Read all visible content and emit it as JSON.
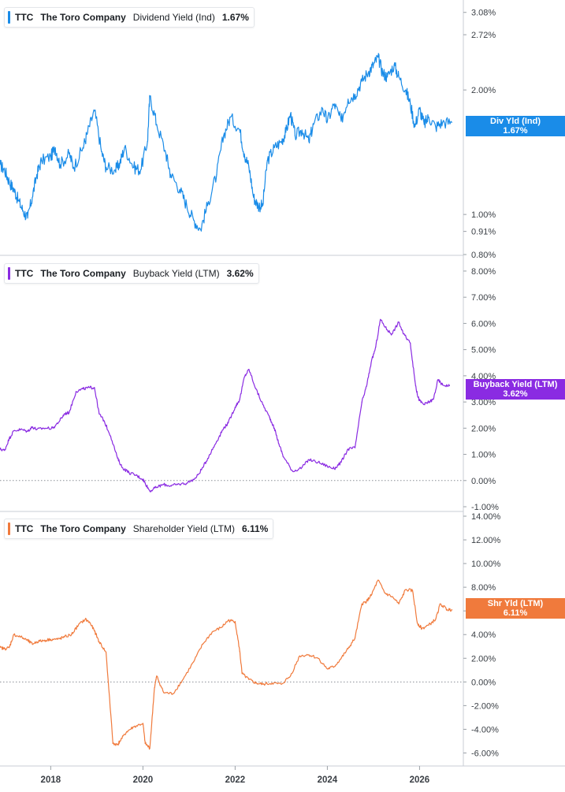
{
  "chart_data": [
    {
      "type": "line",
      "ticker": "TTC",
      "company": "The Toro Company",
      "metric": "Dividend Yield (Ind)",
      "last_value": "1.67%",
      "tag_label": "Div Yld (Ind)",
      "tag_value": "1.67%",
      "color": "#1a8ce8",
      "scale": "log",
      "ylim": [
        0.8,
        3.3
      ],
      "yticks": [
        "3.08%",
        "2.72%",
        "2.00%",
        "1.00%",
        "0.91%",
        "0.80%"
      ],
      "x": [
        2016.9,
        2017.0,
        2017.1,
        2017.2,
        2017.3,
        2017.4,
        2017.5,
        2017.6,
        2017.7,
        2017.8,
        2018.0,
        2018.1,
        2018.2,
        2018.4,
        2018.5,
        2018.7,
        2018.8,
        2018.95,
        2019.1,
        2019.2,
        2019.4,
        2019.5,
        2019.6,
        2019.8,
        2019.95,
        2020.1,
        2020.15,
        2020.3,
        2020.5,
        2020.6,
        2020.8,
        2020.95,
        2021.1,
        2021.25,
        2021.4,
        2021.6,
        2021.75,
        2021.9,
        2022.1,
        2022.2,
        2022.3,
        2022.4,
        2022.5,
        2022.6,
        2022.7,
        2022.85,
        2023.0,
        2023.1,
        2023.2,
        2023.3,
        2023.45,
        2023.6,
        2023.7,
        2023.9,
        2024.0,
        2024.15,
        2024.3,
        2024.45,
        2024.6,
        2024.75,
        2024.9,
        2025.0,
        2025.1,
        2025.2,
        2025.3,
        2025.45,
        2025.55,
        2025.7,
        2025.8,
        2025.9,
        2026.0,
        2026.1,
        2026.2,
        2026.35,
        2026.5,
        2026.7
      ],
      "y": [
        1.32,
        1.28,
        1.2,
        1.15,
        1.08,
        1.02,
        0.98,
        1.1,
        1.25,
        1.35,
        1.38,
        1.45,
        1.32,
        1.4,
        1.3,
        1.45,
        1.58,
        1.78,
        1.42,
        1.3,
        1.28,
        1.33,
        1.45,
        1.3,
        1.28,
        1.5,
        1.93,
        1.65,
        1.4,
        1.25,
        1.15,
        1.05,
        0.97,
        0.92,
        1.05,
        1.25,
        1.55,
        1.72,
        1.6,
        1.4,
        1.3,
        1.1,
        1.05,
        1.05,
        1.35,
        1.45,
        1.5,
        1.58,
        1.75,
        1.55,
        1.6,
        1.5,
        1.65,
        1.8,
        1.68,
        1.85,
        1.68,
        1.9,
        1.95,
        2.1,
        2.22,
        2.3,
        2.4,
        2.2,
        2.15,
        2.3,
        2.15,
        2.0,
        1.85,
        1.63,
        1.8,
        1.65,
        1.72,
        1.63,
        1.67,
        1.67
      ]
    },
    {
      "type": "line",
      "ticker": "TTC",
      "company": "The Toro Company",
      "metric": "Buyback Yield (LTM)",
      "last_value": "3.62%",
      "tag_label": "Buyback Yield (LTM)",
      "tag_value": "3.62%",
      "color": "#8a2be2",
      "ylim": [
        -1.15,
        8.6
      ],
      "yticks": [
        "8.00%",
        "7.00%",
        "6.00%",
        "5.00%",
        "4.00%",
        "3.00%",
        "2.00%",
        "1.00%",
        "0.00%",
        "-1.00%"
      ],
      "x": [
        2016.9,
        2017.0,
        2017.1,
        2017.2,
        2017.35,
        2017.5,
        2017.6,
        2017.7,
        2017.85,
        2018.05,
        2018.2,
        2018.3,
        2018.4,
        2018.55,
        2018.7,
        2018.85,
        2018.95,
        2019.05,
        2019.15,
        2019.3,
        2019.45,
        2019.55,
        2019.7,
        2019.85,
        2020.0,
        2020.05,
        2020.15,
        2020.3,
        2020.45,
        2020.6,
        2020.75,
        2020.95,
        2021.15,
        2021.3,
        2021.45,
        2021.6,
        2021.75,
        2021.85,
        2022.0,
        2022.1,
        2022.2,
        2022.3,
        2022.45,
        2022.6,
        2022.75,
        2022.85,
        2022.95,
        2023.05,
        2023.25,
        2023.45,
        2023.6,
        2023.8,
        2024.0,
        2024.15,
        2024.3,
        2024.45,
        2024.6,
        2024.75,
        2024.85,
        2024.95,
        2025.05,
        2025.15,
        2025.3,
        2025.4,
        2025.55,
        2025.65,
        2025.8,
        2025.9,
        2025.95,
        2026.0,
        2026.1,
        2026.2,
        2026.3,
        2026.4,
        2026.5,
        2026.65
      ],
      "y": [
        1.2,
        1.15,
        1.6,
        1.9,
        1.95,
        1.88,
        2.05,
        1.95,
        2.0,
        2.0,
        2.3,
        2.55,
        2.6,
        3.4,
        3.5,
        3.55,
        3.55,
        2.55,
        2.3,
        1.7,
        0.85,
        0.5,
        0.3,
        0.2,
        0.05,
        -0.1,
        -0.4,
        -0.25,
        -0.15,
        -0.2,
        -0.15,
        -0.1,
        0.1,
        0.5,
        1.0,
        1.5,
        2.0,
        2.2,
        2.8,
        3.1,
        3.95,
        4.25,
        3.5,
        2.9,
        2.4,
        2.0,
        1.4,
        0.9,
        0.35,
        0.5,
        0.8,
        0.7,
        0.55,
        0.45,
        0.7,
        1.2,
        1.25,
        3.0,
        3.6,
        4.5,
        5.1,
        6.15,
        5.75,
        5.6,
        6.05,
        5.6,
        5.25,
        3.8,
        3.3,
        3.05,
        2.9,
        3.0,
        3.1,
        3.85,
        3.65,
        3.62
      ]
    },
    {
      "type": "line",
      "ticker": "TTC",
      "company": "The Toro Company",
      "metric": "Shareholder Yield (LTM)",
      "last_value": "6.11%",
      "tag_label": "Shr Yld (LTM)",
      "tag_value": "6.11%",
      "color": "#f07a3c",
      "ylim": [
        -7.1,
        14.4
      ],
      "yticks": [
        "14.00%",
        "12.00%",
        "10.00%",
        "8.00%",
        "6.00%",
        "4.00%",
        "2.00%",
        "0.00%",
        "-2.00%",
        "-4.00%",
        "-6.00%"
      ],
      "x": [
        2016.9,
        2017.0,
        2017.1,
        2017.2,
        2017.35,
        2017.5,
        2017.6,
        2017.7,
        2017.85,
        2018.0,
        2018.15,
        2018.3,
        2018.45,
        2018.6,
        2018.75,
        2018.85,
        2018.95,
        2019.05,
        2019.2,
        2019.35,
        2019.45,
        2019.5,
        2019.65,
        2019.8,
        2020.0,
        2020.05,
        2020.15,
        2020.25,
        2020.3,
        2020.45,
        2020.65,
        2020.85,
        2021.1,
        2021.3,
        2021.5,
        2021.7,
        2021.85,
        2022.0,
        2022.1,
        2022.15,
        2022.3,
        2022.45,
        2022.6,
        2022.8,
        2023.0,
        2023.2,
        2023.4,
        2023.6,
        2023.8,
        2024.0,
        2024.15,
        2024.3,
        2024.45,
        2024.6,
        2024.75,
        2024.85,
        2024.95,
        2025.1,
        2025.25,
        2025.4,
        2025.55,
        2025.7,
        2025.85,
        2025.95,
        2026.05,
        2026.2,
        2026.35,
        2026.45,
        2026.6,
        2026.7
      ],
      "y": [
        2.9,
        2.8,
        2.9,
        4.0,
        3.8,
        3.5,
        3.2,
        3.4,
        3.5,
        3.6,
        3.6,
        3.8,
        4.0,
        4.8,
        5.3,
        5.0,
        4.3,
        3.4,
        2.5,
        -5.2,
        -5.3,
        -5.0,
        -4.2,
        -3.8,
        -3.5,
        -5.2,
        -5.6,
        -0.5,
        0.5,
        -0.9,
        -1.0,
        0.1,
        1.7,
        3.2,
        4.2,
        4.6,
        5.2,
        5.1,
        2.6,
        0.7,
        0.2,
        -0.1,
        -0.2,
        -0.1,
        -0.2,
        0.5,
        2.2,
        2.3,
        2.0,
        1.1,
        1.3,
        2.0,
        2.8,
        3.7,
        6.6,
        6.8,
        7.3,
        8.6,
        7.5,
        7.2,
        6.6,
        7.8,
        7.7,
        5.0,
        4.5,
        4.8,
        5.3,
        6.6,
        6.1,
        6.11
      ]
    }
  ],
  "x_axis": {
    "ticks": [
      "2018",
      "2020",
      "2022",
      "2024",
      "2026"
    ]
  }
}
